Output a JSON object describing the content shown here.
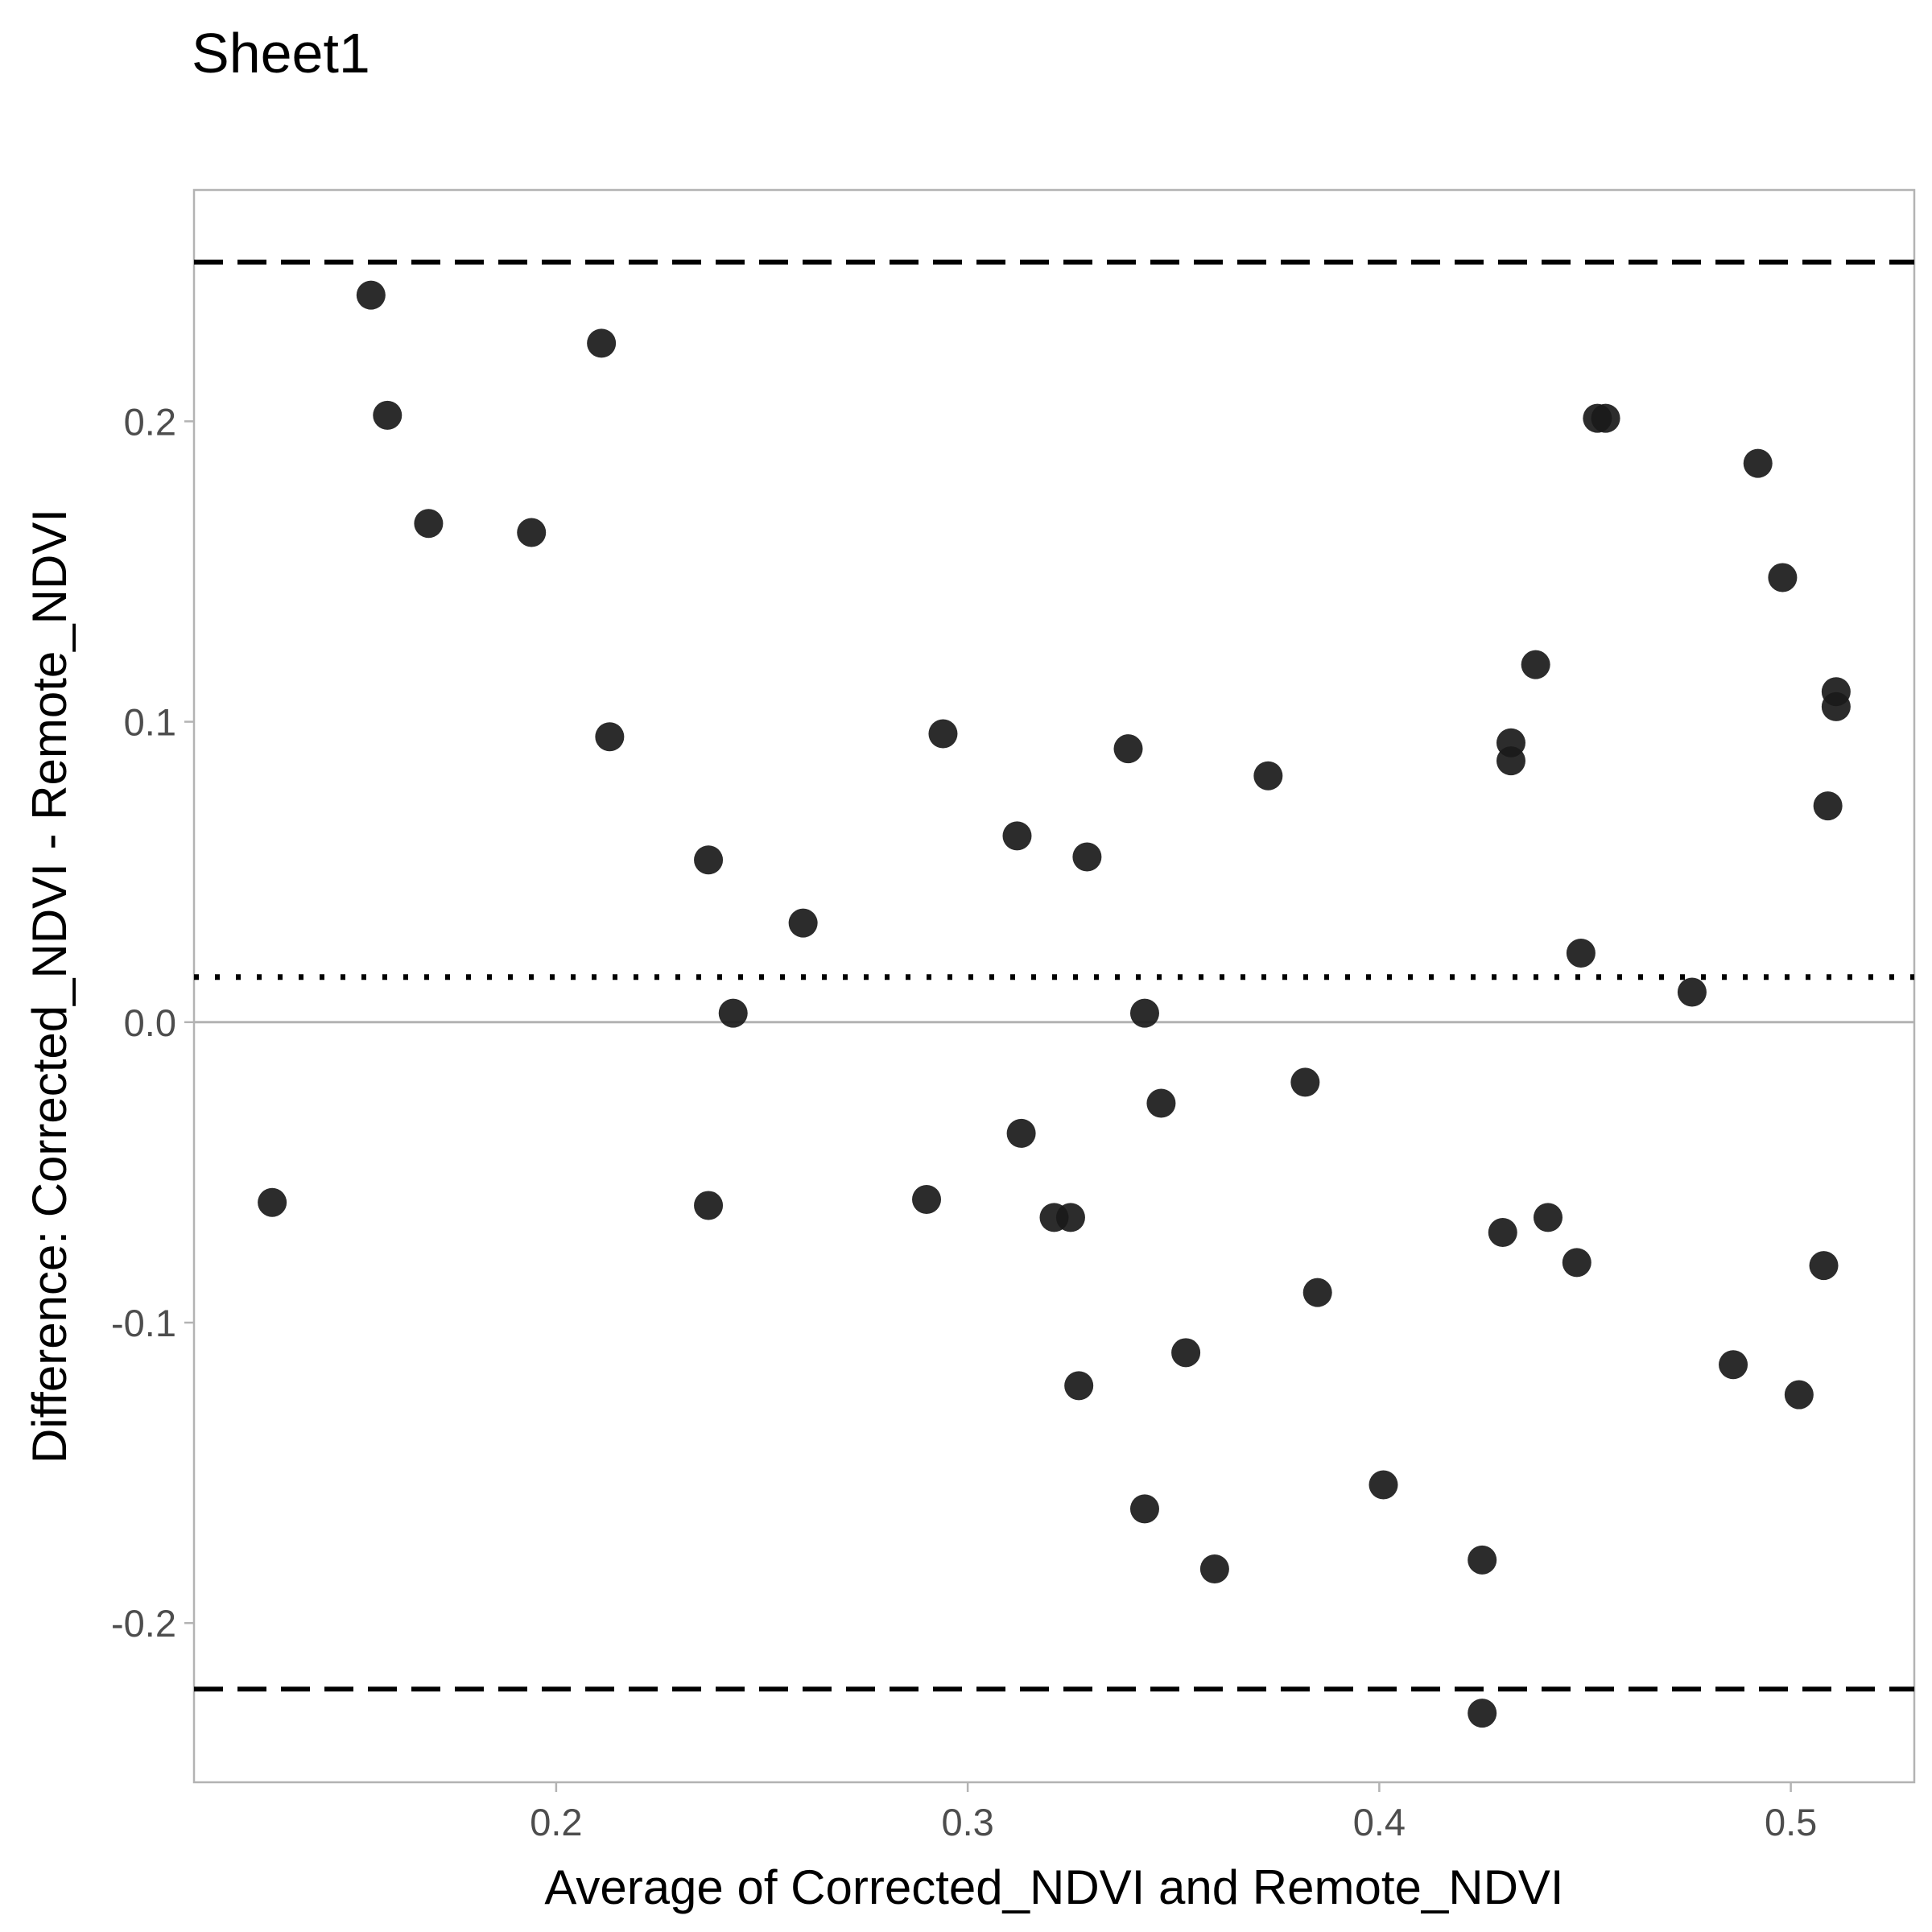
{
  "chart_data": {
    "type": "scatter",
    "title": "Sheet1",
    "xlabel": "Average of Corrected_NDVI and Remote_NDVI",
    "ylabel": "Difference: Corrected_NDVI - Remote_NDVI",
    "xlim": [
      0.112,
      0.53
    ],
    "ylim": [
      -0.253,
      0.277
    ],
    "x_ticks": [
      0.2,
      0.3,
      0.4,
      0.5
    ],
    "x_tick_labels": [
      "0.2",
      "0.3",
      "0.4",
      "0.5"
    ],
    "y_ticks": [
      -0.2,
      -0.1,
      0.0,
      0.1,
      0.2
    ],
    "y_tick_labels": [
      "-0.2",
      "-0.1",
      "0.0",
      "0.1",
      "0.2"
    ],
    "reference_lines": {
      "zero": 0.0,
      "mean_difference": 0.015,
      "upper_limit": 0.253,
      "lower_limit": -0.222
    },
    "grid": false,
    "point_color": "#1a1a1a",
    "x": [
      0.131,
      0.155,
      0.159,
      0.169,
      0.194,
      0.211,
      0.213,
      0.237,
      0.237,
      0.243,
      0.26,
      0.29,
      0.294,
      0.312,
      0.313,
      0.321,
      0.325,
      0.327,
      0.329,
      0.339,
      0.343,
      0.343,
      0.347,
      0.353,
      0.36,
      0.373,
      0.382,
      0.385,
      0.401,
      0.425,
      0.425,
      0.43,
      0.432,
      0.432,
      0.438,
      0.441,
      0.448,
      0.449,
      0.453,
      0.455,
      0.476,
      0.486,
      0.492,
      0.498,
      0.502,
      0.508,
      0.509,
      0.511,
      0.511
    ],
    "y": [
      -0.06,
      0.242,
      0.202,
      0.166,
      0.163,
      0.226,
      0.095,
      0.054,
      -0.061,
      0.003,
      0.033,
      -0.059,
      0.096,
      0.062,
      -0.037,
      -0.065,
      -0.065,
      -0.121,
      0.055,
      0.091,
      0.003,
      -0.162,
      -0.027,
      -0.11,
      -0.182,
      0.082,
      -0.02,
      -0.09,
      -0.154,
      -0.179,
      -0.23,
      -0.07,
      0.087,
      0.093,
      0.119,
      -0.065,
      -0.08,
      0.023,
      0.201,
      0.201,
      0.01,
      -0.114,
      0.186,
      0.148,
      -0.124,
      -0.081,
      0.072,
      0.11,
      0.105
    ]
  }
}
